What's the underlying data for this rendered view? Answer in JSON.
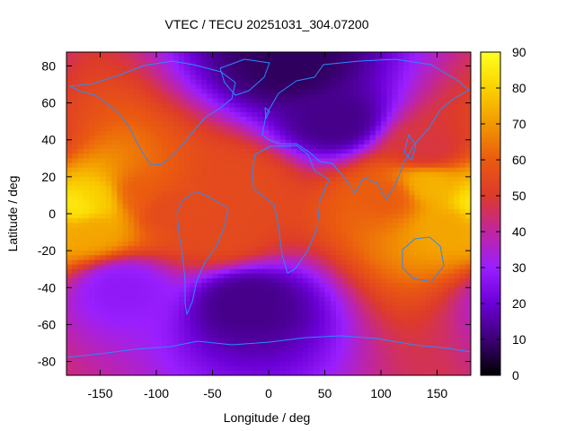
{
  "chart_data": {
    "type": "heatmap",
    "title": "VTEC / TECU 20251031_304.07200",
    "xlabel": "Longitude / deg",
    "ylabel": "Latitude / deg",
    "xlim": [
      -180,
      180
    ],
    "ylim": [
      -87.5,
      87.5
    ],
    "xticks": [
      -150,
      -100,
      -50,
      0,
      50,
      100,
      150
    ],
    "yticks": [
      -80,
      -60,
      -40,
      -20,
      0,
      20,
      40,
      60,
      80
    ],
    "colorbar": {
      "min": 0,
      "max": 90,
      "ticks": [
        0,
        10,
        20,
        30,
        40,
        50,
        60,
        70,
        80,
        90
      ],
      "palette": [
        "#000000",
        "#3c0075",
        "#6b00d6",
        "#9a1fff",
        "#c0259f",
        "#dd3a2b",
        "#ea5a10",
        "#f29800",
        "#fad200",
        "#ffff20"
      ],
      "placement": "right"
    },
    "overlay": "coastlines",
    "grid": false,
    "features": [
      {
        "lon": -172,
        "lat": 3,
        "vtec": 86
      },
      {
        "lon": -150,
        "lat": 8,
        "vtec": 80
      },
      {
        "lon": -160,
        "lat": -8,
        "vtec": 72
      },
      {
        "lon": -120,
        "lat": 10,
        "vtec": 60
      },
      {
        "lon": -90,
        "lat": 2,
        "vtec": 55
      },
      {
        "lon": -30,
        "lat": 16,
        "vtec": 55
      },
      {
        "lon": -45,
        "lat": -10,
        "vtec": 55
      },
      {
        "lon": 140,
        "lat": 15,
        "vtec": 75
      },
      {
        "lon": 165,
        "lat": -5,
        "vtec": 72
      },
      {
        "lon": 110,
        "lat": 10,
        "vtec": 60
      },
      {
        "lon": 140,
        "lat": 35,
        "vtec": 48
      },
      {
        "lon": 20,
        "lat": 80,
        "vtec": 8
      },
      {
        "lon": 60,
        "lat": 50,
        "vtec": 12
      },
      {
        "lon": -20,
        "lat": -48,
        "vtec": 12
      },
      {
        "lon": -130,
        "lat": -40,
        "vtec": 28
      }
    ]
  }
}
